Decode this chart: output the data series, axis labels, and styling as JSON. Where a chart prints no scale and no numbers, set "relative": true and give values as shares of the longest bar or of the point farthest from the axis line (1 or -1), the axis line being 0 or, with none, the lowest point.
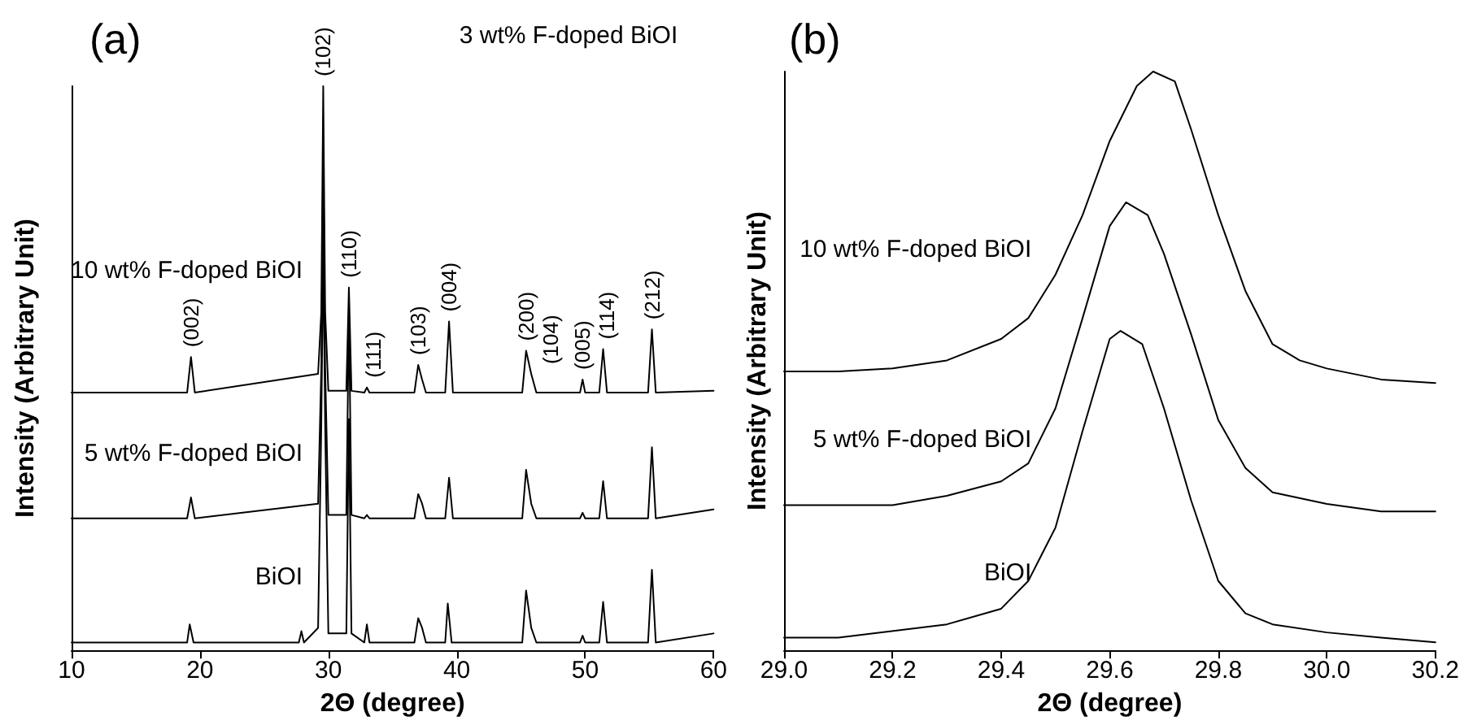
{
  "chart_data": [
    {
      "type": "line",
      "title": "(a)",
      "xlabel": "2Θ (degree)",
      "ylabel": "Intensity (Arbitrary Unit)",
      "relative": true,
      "xlim": [
        10,
        60
      ],
      "xticks": [
        10,
        20,
        30,
        40,
        50,
        60
      ],
      "grid": false,
      "legend": false,
      "marker": "none",
      "line_style": "solid",
      "annotations": [
        "3 wt% F-doped BiOI",
        {
          "text": "(002)",
          "x": 19.3,
          "y": 0.52
        },
        {
          "text": "(102)",
          "x": 29.6,
          "y": 1.0
        },
        {
          "text": "(110)",
          "x": 31.6,
          "y": 0.643
        },
        {
          "text": "(111)",
          "x": 33.0,
          "y": 0.466
        },
        {
          "text": "(103)",
          "x": 37.0,
          "y": 0.506
        },
        {
          "text": "(004)",
          "x": 39.4,
          "y": 0.583
        },
        {
          "text": "(200)",
          "x": 45.4,
          "y": 0.531
        },
        {
          "text": "(104)",
          "x": 45.8,
          "y": 0.49
        },
        {
          "text": "(005)",
          "x": 49.8,
          "y": 0.48
        },
        {
          "text": "(114)",
          "x": 51.4,
          "y": 0.534
        },
        {
          "text": "(212)",
          "x": 55.2,
          "y": 0.569
        }
      ],
      "series": [
        {
          "name": "10 wt% F-doped BiOI",
          "color": "#000000",
          "x": [
            10,
            19.0,
            19.3,
            19.6,
            29.2,
            29.45,
            29.6,
            29.75,
            30.0,
            31.4,
            31.6,
            31.8,
            32.8,
            33.0,
            33.2,
            36.7,
            37.0,
            37.3,
            37.6,
            39.1,
            39.4,
            39.7,
            45.1,
            45.4,
            45.8,
            46.2,
            49.6,
            49.8,
            50.0,
            51.1,
            51.4,
            51.7,
            54.9,
            55.2,
            55.5,
            60
          ],
          "values": [
            0.457,
            0.457,
            0.52,
            0.457,
            0.49,
            0.6,
            1.0,
            0.6,
            0.46,
            0.46,
            0.643,
            0.46,
            0.457,
            0.466,
            0.457,
            0.457,
            0.506,
            0.48,
            0.457,
            0.457,
            0.583,
            0.457,
            0.457,
            0.531,
            0.49,
            0.457,
            0.457,
            0.48,
            0.457,
            0.457,
            0.534,
            0.457,
            0.457,
            0.569,
            0.457,
            0.46
          ]
        },
        {
          "name": "5 wt% F-doped BiOI",
          "color": "#000000",
          "x": [
            10,
            19.0,
            19.3,
            19.6,
            29.2,
            29.45,
            29.6,
            29.75,
            30.0,
            31.4,
            31.6,
            31.8,
            32.8,
            33.0,
            33.2,
            36.7,
            37.0,
            37.3,
            37.6,
            39.1,
            39.4,
            39.7,
            45.1,
            45.4,
            45.8,
            46.2,
            49.6,
            49.8,
            50.0,
            51.1,
            51.4,
            51.7,
            54.9,
            55.2,
            55.5,
            60
          ],
          "values": [
            0.234,
            0.234,
            0.271,
            0.234,
            0.26,
            0.5,
            0.866,
            0.5,
            0.24,
            0.24,
            0.6,
            0.24,
            0.234,
            0.24,
            0.234,
            0.234,
            0.277,
            0.26,
            0.234,
            0.234,
            0.306,
            0.234,
            0.234,
            0.32,
            0.26,
            0.234,
            0.234,
            0.244,
            0.234,
            0.234,
            0.3,
            0.234,
            0.234,
            0.36,
            0.234,
            0.25
          ]
        },
        {
          "name": "BiOI",
          "color": "#000000",
          "x": [
            10,
            19.0,
            19.2,
            19.5,
            27.7,
            27.9,
            28.1,
            29.2,
            29.45,
            29.6,
            29.75,
            30.0,
            31.4,
            31.6,
            31.8,
            32.8,
            33.0,
            33.2,
            36.7,
            37.0,
            37.3,
            37.6,
            39.1,
            39.3,
            39.6,
            45.1,
            45.4,
            45.8,
            46.2,
            49.6,
            49.8,
            50.0,
            51.1,
            51.4,
            51.7,
            54.9,
            55.2,
            55.5,
            60
          ],
          "values": [
            0.014,
            0.014,
            0.046,
            0.014,
            0.014,
            0.034,
            0.014,
            0.04,
            0.4,
            0.72,
            0.4,
            0.03,
            0.03,
            0.41,
            0.03,
            0.014,
            0.046,
            0.014,
            0.014,
            0.057,
            0.04,
            0.014,
            0.014,
            0.083,
            0.014,
            0.014,
            0.106,
            0.04,
            0.014,
            0.014,
            0.026,
            0.014,
            0.014,
            0.086,
            0.014,
            0.014,
            0.143,
            0.014,
            0.03
          ]
        }
      ]
    },
    {
      "type": "line",
      "title": "(b)",
      "xlabel": "2Θ (degree)",
      "ylabel": "Intensity (Arbitrary Unit)",
      "relative": true,
      "xlim": [
        29.0,
        30.2
      ],
      "xticks": [
        {
          "value": 29,
          "label": "29.0"
        },
        29.2,
        29.4,
        29.6,
        29.8,
        {
          "value": 30,
          "label": "30.0"
        },
        30.2
      ],
      "grid": false,
      "legend": false,
      "marker": "none",
      "line_style": "solid",
      "series": [
        {
          "name": "10 wt% F-doped BiOI",
          "color": "#000000",
          "x": [
            29.0,
            29.1,
            29.2,
            29.3,
            29.4,
            29.45,
            29.5,
            29.55,
            29.6,
            29.65,
            29.68,
            29.72,
            29.75,
            29.8,
            29.85,
            29.9,
            29.95,
            30.0,
            30.1,
            30.2
          ],
          "values": [
            0.482,
            0.482,
            0.487,
            0.501,
            0.538,
            0.574,
            0.649,
            0.752,
            0.88,
            0.975,
            1.0,
            0.983,
            0.9,
            0.752,
            0.621,
            0.529,
            0.501,
            0.487,
            0.468,
            0.462
          ]
        },
        {
          "name": "5 wt% F-doped BiOI",
          "color": "#000000",
          "x": [
            29.0,
            29.2,
            29.3,
            29.4,
            29.45,
            29.5,
            29.55,
            29.6,
            29.63,
            29.67,
            29.7,
            29.75,
            29.8,
            29.85,
            29.9,
            30.0,
            30.1,
            30.2
          ],
          "values": [
            0.251,
            0.251,
            0.267,
            0.292,
            0.323,
            0.418,
            0.574,
            0.733,
            0.774,
            0.752,
            0.685,
            0.546,
            0.398,
            0.315,
            0.273,
            0.253,
            0.24,
            0.24
          ]
        },
        {
          "name": "BiOI",
          "color": "#000000",
          "x": [
            29.0,
            29.1,
            29.3,
            29.4,
            29.45,
            29.5,
            29.55,
            29.6,
            29.62,
            29.66,
            29.7,
            29.75,
            29.8,
            29.85,
            29.9,
            30.0,
            30.1,
            30.2
          ],
          "values": [
            0.022,
            0.022,
            0.045,
            0.072,
            0.12,
            0.212,
            0.379,
            0.538,
            0.552,
            0.529,
            0.418,
            0.259,
            0.12,
            0.064,
            0.045,
            0.031,
            0.022,
            0.014
          ]
        }
      ]
    }
  ]
}
